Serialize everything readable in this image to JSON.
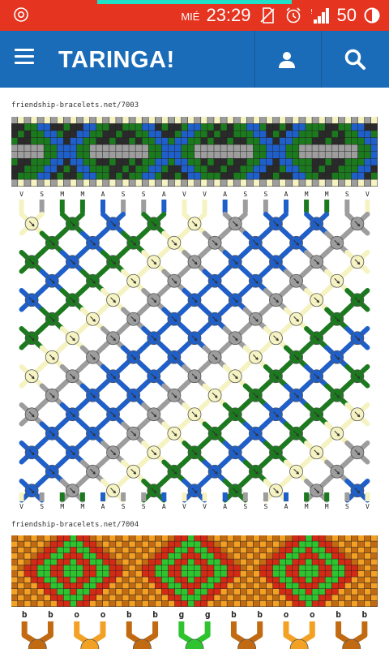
{
  "status_bar": {
    "day": "MIÉ",
    "time": "23:29",
    "battery": "50",
    "colors": {
      "bar": "#e5341f",
      "accent": "#1ee1c8"
    },
    "icons": [
      "target-icon",
      "no-sim-icon",
      "alarm-icon",
      "signal-icon",
      "battery-icon"
    ]
  },
  "app_bar": {
    "logo": "TARINGA!",
    "color": "#1a6cb8",
    "icons": [
      "menu-icon",
      "user-icon",
      "search-icon"
    ]
  },
  "patterns": [
    {
      "caption": "friendship-bracelets.net/7003",
      "top_labels": [
        "V",
        "S",
        "M",
        "M",
        "A",
        "S",
        "S",
        "A",
        "V",
        "V",
        "A",
        "S",
        "S",
        "A",
        "M",
        "M",
        "S",
        "V"
      ],
      "bottom_labels": [
        "V",
        "S",
        "M",
        "M",
        "A",
        "S",
        "S",
        "A",
        "V",
        "V",
        "A",
        "S",
        "S",
        "A",
        "M",
        "M",
        "S",
        "V"
      ],
      "colors": {
        "V": "#f6f3c2",
        "S": "#9d9d9d",
        "M": "#1c7a1e",
        "A": "#1f5fc9"
      }
    },
    {
      "caption": "friendship-bracelets.net/7004",
      "top_labels": [
        "b",
        "b",
        "o",
        "o",
        "b",
        "b",
        "g",
        "g",
        "b",
        "b",
        "o",
        "o",
        "b",
        "b"
      ],
      "colors": {
        "b": "#c26a12",
        "o": "#f2a125",
        "g": "#2fc42f",
        "red": "#d22a15"
      }
    }
  ]
}
